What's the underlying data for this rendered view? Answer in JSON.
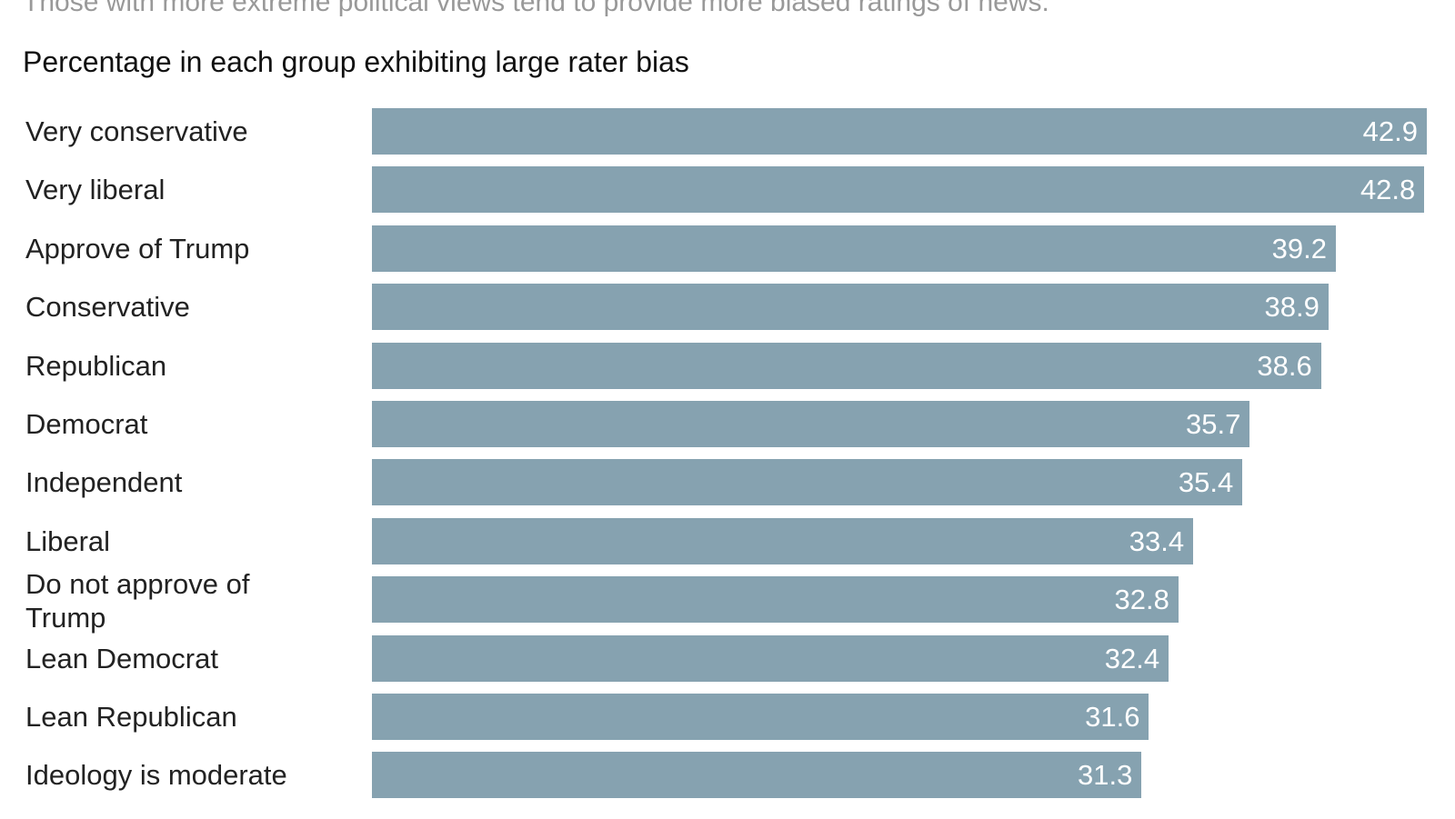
{
  "chart_data": {
    "type": "bar",
    "orientation": "horizontal",
    "subtitle": "Those with more extreme political views tend to provide more biased ratings of news.",
    "title": "Percentage in each group exhibiting large rater bias",
    "categories": [
      "Very conservative",
      "Very liberal",
      "Approve of Trump",
      "Conservative",
      "Republican",
      "Democrat",
      "Independent",
      "Liberal",
      "Do not approve of Trump",
      "Lean Democrat",
      "Lean Republican",
      "Ideology is moderate"
    ],
    "values": [
      42.9,
      42.8,
      39.2,
      38.9,
      38.6,
      35.7,
      35.4,
      33.4,
      32.8,
      32.4,
      31.6,
      31.3
    ],
    "color": "#86a2b0"
  }
}
